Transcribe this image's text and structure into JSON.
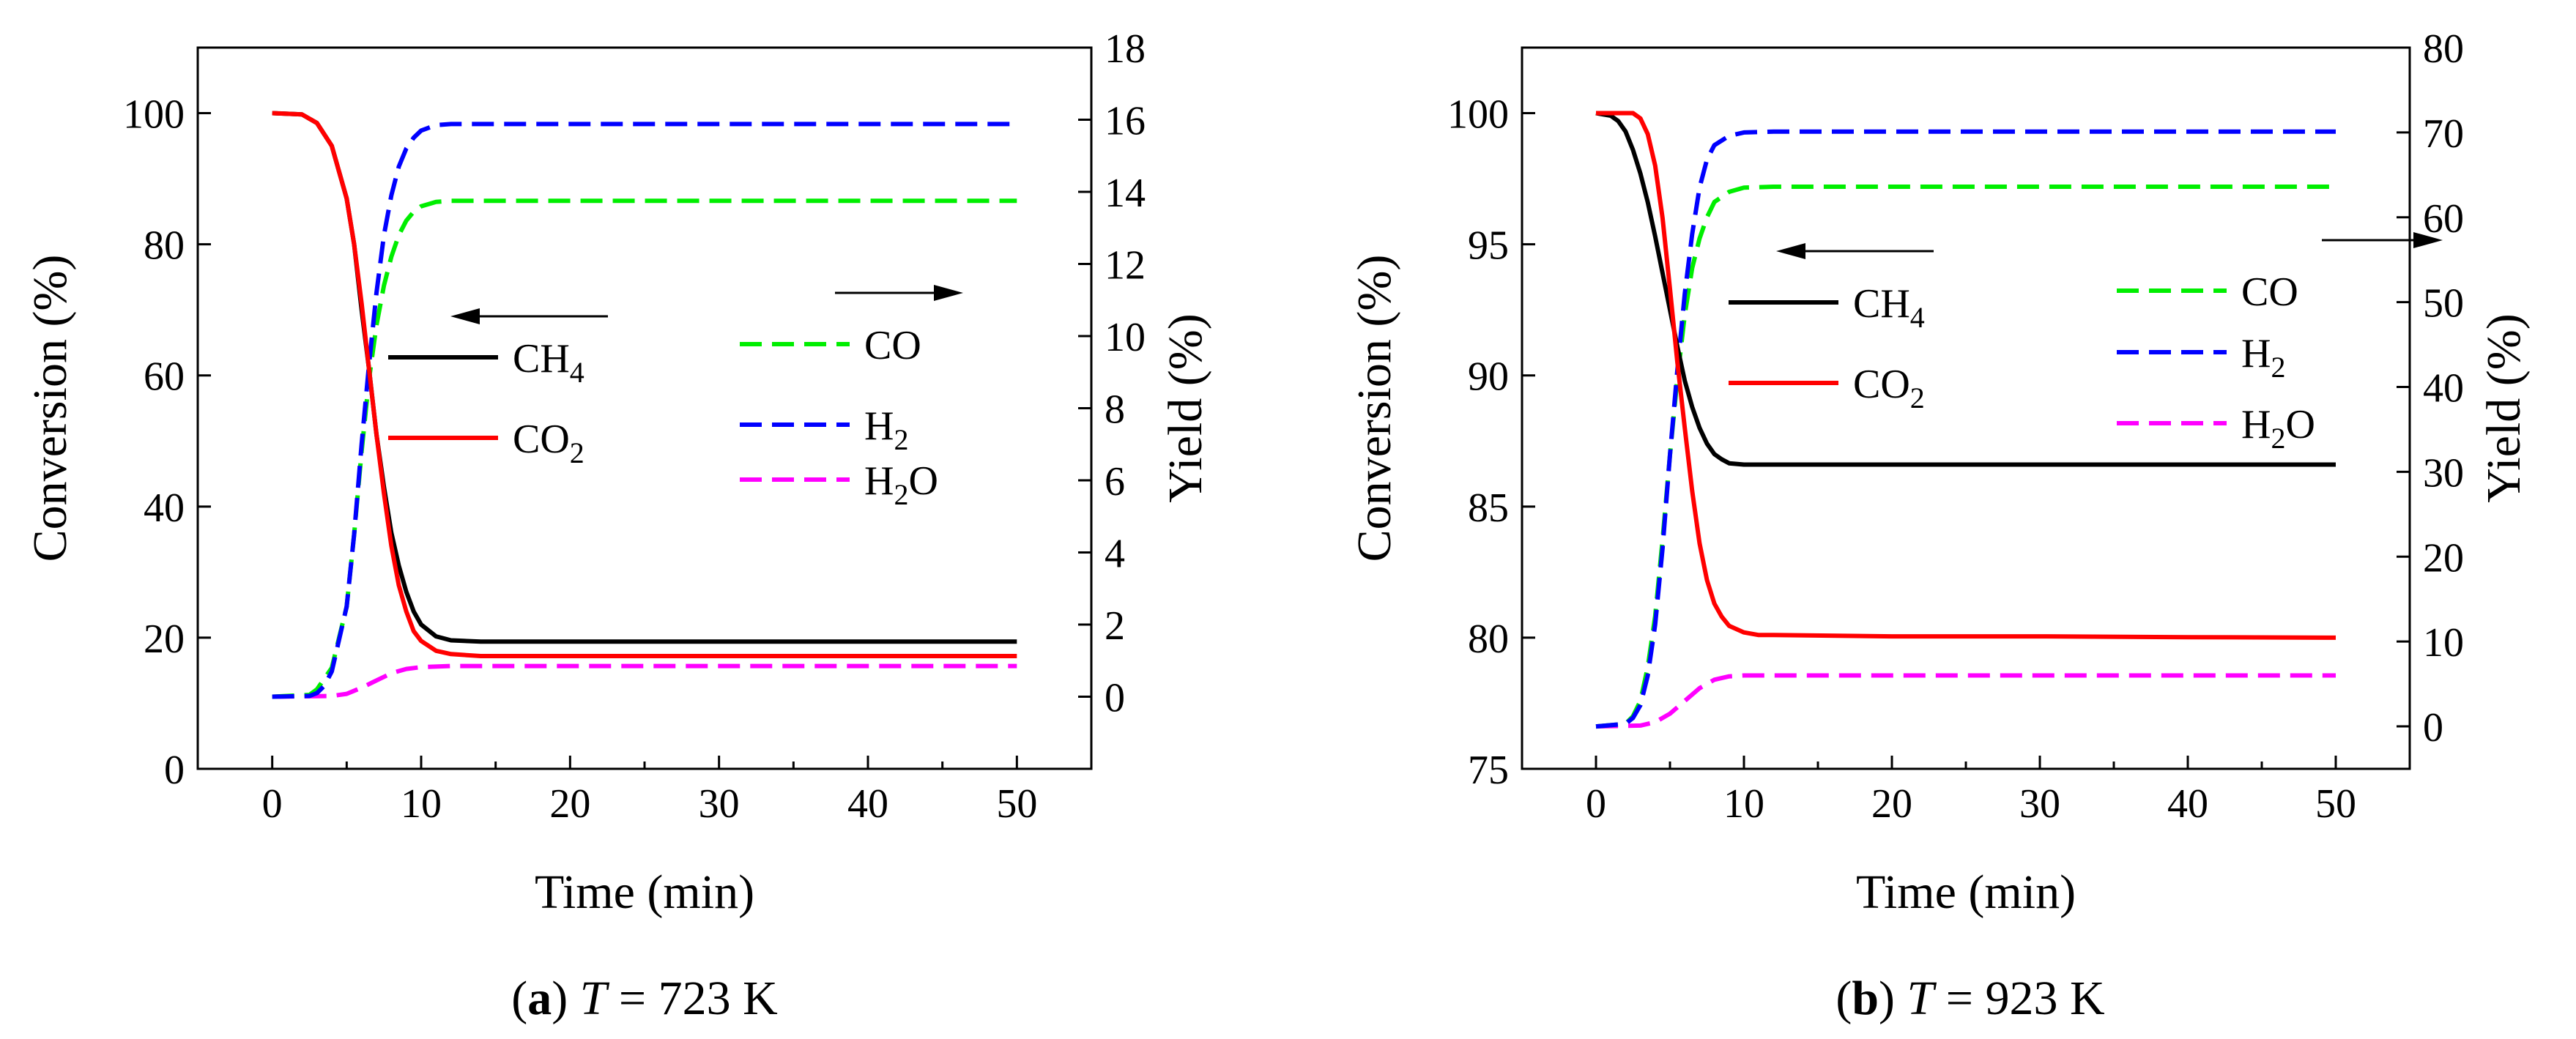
{
  "chart_data": [
    {
      "type": "line",
      "panel_label": "a",
      "caption_text": "T = 723 K",
      "caption": {
        "label": "a",
        "variable": "T",
        "equals": " = ",
        "value": "723 K"
      },
      "xlabel": "Time (min)",
      "ylabel_left": "Conversion (%)",
      "ylabel_right": "Yield (%)",
      "xlim": [
        -5,
        55
      ],
      "ylim_left": [
        0,
        110
      ],
      "ylim_right": [
        -2,
        18
      ],
      "xticks": [
        0,
        10,
        20,
        30,
        40,
        50
      ],
      "yticks_left": [
        0,
        20,
        40,
        60,
        80,
        100
      ],
      "yticks_right": [
        0,
        2,
        4,
        6,
        8,
        10,
        12,
        14,
        16,
        18
      ],
      "series": [
        {
          "name": "CH4",
          "axis": "left",
          "color": "#000000",
          "dash": "solid",
          "x": [
            0,
            2,
            3,
            4,
            5,
            5.5,
            6,
            6.5,
            7,
            7.5,
            8,
            8.5,
            9,
            9.5,
            10,
            11,
            12,
            14,
            20,
            30,
            40,
            50
          ],
          "y": [
            100,
            99.8,
            98.5,
            95,
            87,
            80,
            70,
            61,
            51,
            43,
            36,
            31,
            27,
            24,
            22,
            20.2,
            19.6,
            19.4,
            19.4,
            19.4,
            19.4,
            19.4
          ]
        },
        {
          "name": "CO2",
          "axis": "left",
          "color": "#ff0000",
          "dash": "solid",
          "x": [
            0,
            2,
            3,
            4,
            5,
            5.5,
            6,
            6.5,
            7,
            7.5,
            8,
            8.5,
            9,
            9.5,
            10,
            11,
            12,
            14,
            20,
            30,
            40,
            50
          ],
          "y": [
            100,
            99.8,
            98.5,
            95,
            87,
            80,
            71,
            61,
            51,
            42,
            34,
            28,
            24,
            21,
            19.5,
            18,
            17.5,
            17.2,
            17.2,
            17.2,
            17.2,
            17.2
          ]
        },
        {
          "name": "CO",
          "axis": "right",
          "color": "#00ee00",
          "dash": "dash",
          "x": [
            0,
            2.5,
            3,
            4,
            5,
            5.5,
            6,
            6.5,
            7,
            7.5,
            8,
            8.5,
            9,
            9.5,
            10,
            11,
            12,
            14,
            20,
            30,
            40,
            50
          ],
          "y": [
            0,
            0.05,
            0.2,
            0.8,
            2.5,
            4.5,
            6.8,
            8.8,
            10.3,
            11.4,
            12.2,
            12.8,
            13.2,
            13.45,
            13.6,
            13.72,
            13.75,
            13.75,
            13.75,
            13.75,
            13.75,
            13.75
          ]
        },
        {
          "name": "H2",
          "axis": "right",
          "color": "#0000ff",
          "dash": "dash",
          "x": [
            0,
            2.5,
            3,
            3.5,
            4,
            5,
            5.5,
            6,
            6.5,
            7,
            7.5,
            8,
            8.5,
            9,
            9.5,
            10,
            11,
            12,
            14,
            20,
            30,
            40,
            50
          ],
          "y": [
            0,
            0.02,
            0.1,
            0.3,
            0.7,
            2.5,
            4.5,
            7,
            9.2,
            11.2,
            12.8,
            13.9,
            14.7,
            15.2,
            15.5,
            15.7,
            15.85,
            15.88,
            15.88,
            15.88,
            15.88,
            15.88,
            15.88
          ]
        },
        {
          "name": "H2O",
          "axis": "right",
          "color": "#ff00ff",
          "dash": "dash",
          "x": [
            0,
            4,
            5,
            6,
            7,
            8,
            9,
            10,
            12,
            15,
            20,
            30,
            40,
            50
          ],
          "y": [
            0,
            0.02,
            0.08,
            0.25,
            0.45,
            0.65,
            0.77,
            0.82,
            0.85,
            0.85,
            0.85,
            0.85,
            0.85,
            0.85
          ]
        }
      ],
      "legend": [
        {
          "name": "CH4",
          "base": "CH",
          "sub": "4"
        },
        {
          "name": "CO2",
          "base": "CO",
          "sub": "2"
        },
        {
          "name": "CO",
          "base": "CO",
          "sub": ""
        },
        {
          "name": "H2",
          "base": "H",
          "sub": "2"
        },
        {
          "name": "H2O",
          "base": "H",
          "sub": "2",
          "tail": "O"
        }
      ],
      "arrows": [
        {
          "direction": "left",
          "points_to": "left axis"
        },
        {
          "direction": "right",
          "points_to": "right axis"
        }
      ]
    },
    {
      "type": "line",
      "panel_label": "b",
      "caption_text": "T = 923 K",
      "caption": {
        "label": "b",
        "variable": "T",
        "equals": " = ",
        "value": "923 K"
      },
      "xlabel": "Time (min)",
      "ylabel_left": "Conversion (%)",
      "ylabel_right": "Yield (%)",
      "xlim": [
        -5,
        55
      ],
      "ylim_left": [
        75,
        102.5
      ],
      "ylim_right": [
        -5,
        80
      ],
      "xticks": [
        0,
        10,
        20,
        30,
        40,
        50
      ],
      "yticks_left": [
        75,
        80,
        85,
        90,
        95,
        100
      ],
      "yticks_right": [
        0,
        10,
        20,
        30,
        40,
        50,
        60,
        70,
        80
      ],
      "series": [
        {
          "name": "CH4",
          "axis": "left",
          "color": "#000000",
          "dash": "solid",
          "x": [
            0,
            1,
            1.5,
            2,
            2.5,
            3,
            3.5,
            4,
            4.5,
            5,
            5.5,
            6,
            6.5,
            7,
            7.5,
            8,
            8.5,
            9,
            10,
            12,
            20,
            30,
            40,
            50
          ],
          "y": [
            100,
            99.9,
            99.7,
            99.3,
            98.6,
            97.7,
            96.6,
            95.3,
            93.9,
            92.5,
            91.1,
            89.8,
            88.8,
            88,
            87.4,
            87,
            86.8,
            86.65,
            86.6,
            86.6,
            86.6,
            86.6,
            86.6,
            86.6
          ]
        },
        {
          "name": "CO2",
          "axis": "left",
          "color": "#ff0000",
          "dash": "solid",
          "x": [
            0,
            2.5,
            3,
            3.5,
            4,
            4.5,
            5,
            5.5,
            6,
            6.5,
            7,
            7.5,
            8,
            8.5,
            9,
            10,
            11,
            12,
            20,
            30,
            40,
            50
          ],
          "y": [
            100,
            100,
            99.8,
            99.2,
            98,
            96,
            93.3,
            90.5,
            88,
            85.6,
            83.6,
            82.2,
            81.3,
            80.8,
            80.45,
            80.2,
            80.1,
            80.1,
            80.05,
            80.05,
            80.02,
            80
          ]
        },
        {
          "name": "CO",
          "axis": "right",
          "color": "#00ee00",
          "dash": "dash",
          "x": [
            0,
            2,
            2.5,
            3,
            3.5,
            4,
            4.5,
            5,
            5.5,
            6,
            6.5,
            7,
            7.5,
            8,
            9,
            10,
            12,
            20,
            30,
            40,
            50
          ],
          "y": [
            0,
            0.3,
            1.2,
            3,
            7,
            13,
            22,
            32,
            41,
            48.5,
            54,
            57.5,
            60,
            61.8,
            63,
            63.5,
            63.6,
            63.6,
            63.6,
            63.6,
            63.6
          ]
        },
        {
          "name": "H2",
          "axis": "right",
          "color": "#0000ff",
          "dash": "dash",
          "x": [
            0,
            2,
            2.5,
            3,
            3.5,
            4,
            4.5,
            5,
            5.5,
            6,
            6.5,
            7,
            7.5,
            8,
            9,
            10,
            12,
            20,
            30,
            40,
            50
          ],
          "y": [
            0,
            0.3,
            1,
            2.5,
            6,
            12,
            21,
            32,
            42,
            51,
            58,
            63.5,
            66.8,
            68.5,
            69.6,
            70,
            70.1,
            70.1,
            70.1,
            70.1,
            70.1
          ]
        },
        {
          "name": "H2O",
          "axis": "right",
          "color": "#ff00ff",
          "dash": "dash",
          "x": [
            0,
            3,
            4,
            5,
            6,
            7,
            8,
            9,
            10,
            12,
            20,
            30,
            40,
            50
          ],
          "y": [
            0,
            0.1,
            0.5,
            1.5,
            3,
            4.5,
            5.5,
            5.9,
            6,
            6,
            6,
            6,
            6,
            6
          ]
        }
      ],
      "legend": [
        {
          "name": "CH4",
          "base": "CH",
          "sub": "4"
        },
        {
          "name": "CO2",
          "base": "CO",
          "sub": "2"
        },
        {
          "name": "CO",
          "base": "CO",
          "sub": ""
        },
        {
          "name": "H2",
          "base": "H",
          "sub": "2"
        },
        {
          "name": "H2O",
          "base": "H",
          "sub": "2",
          "tail": "O"
        }
      ],
      "arrows": [
        {
          "direction": "left",
          "points_to": "left axis"
        },
        {
          "direction": "right",
          "points_to": "right axis"
        }
      ]
    }
  ]
}
